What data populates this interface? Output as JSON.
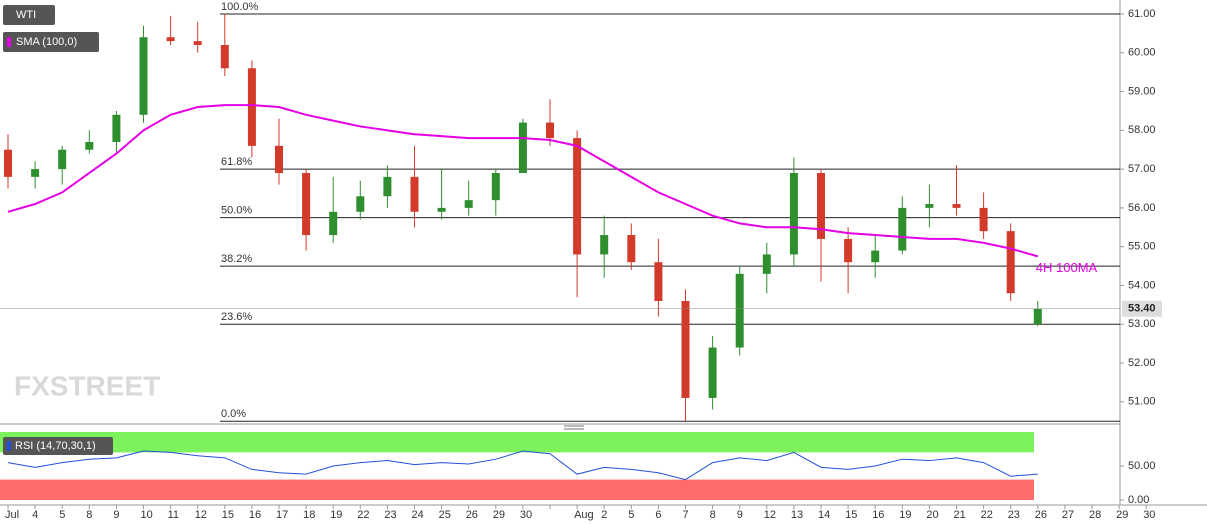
{
  "chart_data": [
    {
      "type": "candlestick",
      "name": "WTI",
      "up_color": "#2f8f2f",
      "down_color": "#d23a2a",
      "categories": [
        "Jul",
        "4",
        "5",
        "8",
        "9",
        "10",
        "11",
        "12",
        "15",
        "16",
        "17",
        "18",
        "19",
        "22",
        "23",
        "24",
        "25",
        "26",
        "29",
        "30",
        null,
        "Aug",
        "2",
        "5",
        "6",
        "7",
        "8",
        "9",
        "12",
        "13",
        "14",
        "15",
        "16",
        "19",
        "20",
        "21",
        "22",
        "23",
        "26",
        "27",
        "28",
        "29",
        "30"
      ],
      "open": [
        57.5,
        56.8,
        57.0,
        57.5,
        57.7,
        58.4,
        60.4,
        60.3,
        60.2,
        59.6,
        57.6,
        56.9,
        55.3,
        55.9,
        56.3,
        56.8,
        55.9,
        56.0,
        56.2,
        56.9,
        58.2,
        57.8,
        54.8,
        55.3,
        54.6,
        53.6,
        51.1,
        52.4,
        54.3,
        54.8,
        56.9,
        55.2,
        54.6,
        54.9,
        56.0,
        56.1,
        56.0,
        55.4,
        53.0,
        null,
        null,
        null,
        null
      ],
      "high": [
        57.9,
        57.2,
        57.6,
        58.0,
        58.5,
        60.7,
        60.95,
        60.8,
        61.0,
        59.8,
        58.3,
        57.0,
        56.8,
        56.7,
        57.1,
        57.6,
        57.0,
        56.7,
        57.0,
        58.3,
        58.8,
        58.0,
        55.8,
        55.6,
        55.2,
        53.9,
        52.7,
        54.5,
        55.1,
        57.3,
        57.0,
        55.5,
        55.3,
        56.3,
        56.6,
        57.1,
        56.4,
        55.6,
        53.6,
        null,
        null,
        null,
        null
      ],
      "low": [
        56.5,
        56.5,
        56.6,
        57.4,
        57.4,
        58.2,
        60.2,
        60.0,
        59.4,
        57.3,
        56.6,
        54.9,
        55.1,
        55.7,
        56.0,
        55.5,
        55.7,
        55.8,
        55.8,
        56.9,
        57.6,
        53.7,
        54.2,
        54.4,
        53.2,
        50.5,
        50.8,
        52.2,
        53.8,
        54.5,
        54.1,
        53.8,
        54.2,
        54.8,
        55.5,
        55.8,
        55.2,
        53.6,
        52.95,
        null,
        null,
        null,
        null
      ],
      "close": [
        56.8,
        57.0,
        57.5,
        57.7,
        58.4,
        60.4,
        60.3,
        60.2,
        59.6,
        57.6,
        56.9,
        55.3,
        55.9,
        56.3,
        56.8,
        55.9,
        56.0,
        56.2,
        56.9,
        58.2,
        57.8,
        54.8,
        55.3,
        54.6,
        53.6,
        51.1,
        52.4,
        54.3,
        54.8,
        56.9,
        55.2,
        54.6,
        54.9,
        56.0,
        56.1,
        56.0,
        55.4,
        53.8,
        53.4,
        null,
        null,
        null,
        null
      ],
      "series": [
        {
          "name": "SMA (100,0)",
          "color": "#e600e6",
          "values": [
            55.9,
            56.1,
            56.4,
            56.9,
            57.4,
            58.0,
            58.4,
            58.6,
            58.65,
            58.65,
            58.6,
            58.4,
            58.25,
            58.1,
            58.0,
            57.9,
            57.85,
            57.8,
            57.8,
            57.8,
            57.75,
            57.6,
            57.2,
            56.8,
            56.4,
            56.1,
            55.8,
            55.6,
            55.5,
            55.5,
            55.45,
            55.35,
            55.3,
            55.25,
            55.2,
            55.2,
            55.1,
            54.95,
            54.75,
            null,
            null,
            null,
            null
          ]
        }
      ],
      "levels": [
        {
          "label": "100.0%",
          "value": 61.0
        },
        {
          "label": "61.8%",
          "value": 57.0
        },
        {
          "label": "50.0%",
          "value": 55.75
        },
        {
          "label": "38.2%",
          "value": 54.5
        },
        {
          "label": "23.6%",
          "value": 53.0
        },
        {
          "label": "0.0%",
          "value": 50.5
        }
      ],
      "last_price": {
        "value": 53.4,
        "label": "53.40"
      },
      "annotation": "4H 100MA",
      "watermark": "FXSTREET",
      "ylim": [
        50.48,
        61.36
      ],
      "yticks": [
        {
          "value": 51,
          "label": "51.00"
        },
        {
          "value": 52,
          "label": "52.00"
        },
        {
          "value": 53,
          "label": "53.00"
        },
        {
          "value": 54,
          "label": "54.00"
        },
        {
          "value": 55,
          "label": "55.00"
        },
        {
          "value": 56,
          "label": "56.00"
        },
        {
          "value": 57,
          "label": "57.00"
        },
        {
          "value": 58,
          "label": "58.00"
        },
        {
          "value": 59,
          "label": "59.00"
        },
        {
          "value": 60,
          "label": "60.00"
        },
        {
          "value": 61,
          "label": "61.00"
        }
      ]
    },
    {
      "type": "line",
      "title": "RSI (14,70,30,1)",
      "color": "#2250d8",
      "values": [
        55,
        48,
        55,
        60,
        62,
        72,
        70,
        65,
        62,
        45,
        40,
        38,
        50,
        55,
        58,
        52,
        55,
        53,
        60,
        72,
        68,
        38,
        48,
        45,
        40,
        30,
        55,
        62,
        58,
        70,
        48,
        45,
        50,
        60,
        58,
        62,
        55,
        35,
        38,
        null,
        null,
        null,
        null
      ],
      "bands": [
        {
          "from": 70,
          "to": 100,
          "color": "#7ef25c"
        },
        {
          "from": 0,
          "to": 30,
          "color": "#ff6b6b"
        }
      ],
      "ylim": [
        0,
        100
      ],
      "yticks": [
        {
          "value": 0,
          "label": "0.00"
        },
        {
          "value": 50,
          "label": "50.00"
        }
      ]
    }
  ]
}
